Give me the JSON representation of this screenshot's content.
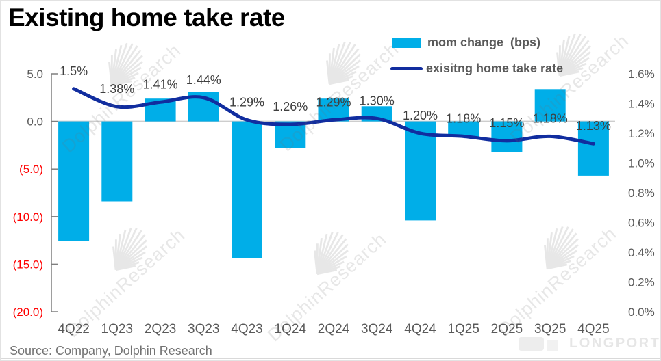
{
  "page": {
    "title": "Existing home take rate",
    "source": "Source: Company, Dolphin Research"
  },
  "legend": {
    "items": [
      {
        "label": "mom change  (bps)",
        "type": "bar"
      },
      {
        "label": "exisitng home take rate",
        "type": "line"
      }
    ]
  },
  "watermarks": {
    "text": "DolphinResearch",
    "brand": "LONGPORT"
  },
  "colors": {
    "bar": "#00AEE8",
    "line": "#112D9F",
    "axis": "#7f7f7f",
    "tick_text": "#595959",
    "negative_text": "#FF0000",
    "gridline": "#cdcdcd",
    "point_label": "#3f3f3f"
  },
  "chart_data": {
    "type": "bar+line",
    "categories": [
      "4Q22",
      "1Q23",
      "2Q23",
      "3Q23",
      "4Q23",
      "1Q24",
      "2Q24",
      "3Q24",
      "4Q24",
      "1Q25",
      "2Q25",
      "3Q25",
      "4Q25"
    ],
    "series": [
      {
        "name": "mom change  (bps)",
        "type": "bar",
        "axis": "left",
        "values": [
          -12.6,
          -8.4,
          2.4,
          3.1,
          -14.4,
          -2.8,
          2.4,
          1.6,
          -10.4,
          -1.6,
          -3.2,
          3.4,
          -5.7
        ]
      },
      {
        "name": "exisitng home take rate",
        "type": "line",
        "axis": "right",
        "values": [
          1.5,
          1.38,
          1.41,
          1.44,
          1.29,
          1.26,
          1.29,
          1.3,
          1.2,
          1.18,
          1.15,
          1.18,
          1.13
        ],
        "point_labels": [
          "1.5%",
          "1.38%",
          "1.41%",
          "1.44%",
          "1.29%",
          "1.26%",
          "1.29%",
          "1.30%",
          "1.20%",
          "1.18%",
          "1.15%",
          "1.18%",
          "1.13%"
        ]
      }
    ],
    "left_axis": {
      "range": [
        -20,
        5
      ],
      "ticks": [
        {
          "label": "5.0",
          "value": 5
        },
        {
          "label": "0.0",
          "value": 0
        },
        {
          "label": "(5.0)",
          "value": -5
        },
        {
          "label": "(10.0)",
          "value": -10
        },
        {
          "label": "(15.0)",
          "value": -15
        },
        {
          "label": "(20.0)",
          "value": -20
        }
      ]
    },
    "right_axis": {
      "range": [
        0,
        1.6
      ],
      "ticks": [
        {
          "label": "1.6%",
          "value": 1.6
        },
        {
          "label": "1.4%",
          "value": 1.4
        },
        {
          "label": "1.2%",
          "value": 1.2
        },
        {
          "label": "1.0%",
          "value": 1.0
        },
        {
          "label": "0.8%",
          "value": 0.8
        },
        {
          "label": "0.6%",
          "value": 0.6
        },
        {
          "label": "0.4%",
          "value": 0.4
        },
        {
          "label": "0.2%",
          "value": 0.2
        },
        {
          "label": "0.0%",
          "value": 0.0
        }
      ]
    },
    "gridlines_at": [
      0
    ],
    "legend_position": "top-right",
    "grid": "zero-line-only"
  }
}
